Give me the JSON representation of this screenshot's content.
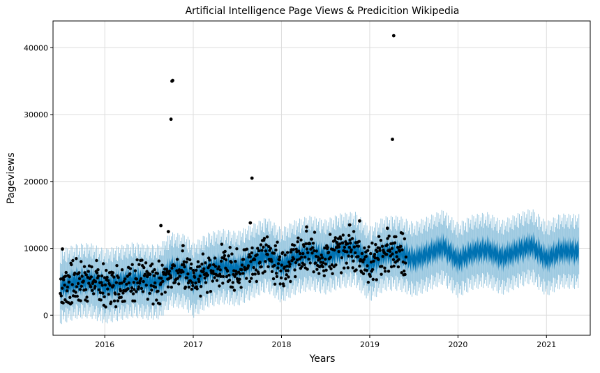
{
  "chart_data": {
    "type": "scatter",
    "title": "Artificial Intelligence Page Views & Predicition Wikipedia",
    "xlabel": "Years",
    "ylabel": "Pageviews",
    "xlim": [
      "2015-06-01",
      "2021-07-01"
    ],
    "ylim": [
      -3000,
      44000
    ],
    "x_ticks": [
      "2016",
      "2017",
      "2018",
      "2019",
      "2020",
      "2021"
    ],
    "y_ticks": [
      0,
      10000,
      20000,
      30000,
      40000
    ],
    "grid": true,
    "colors": {
      "actual": "#000000",
      "forecast": "#0072B2",
      "interval": "#9ecae1",
      "grid": "#dddddd"
    },
    "series": [
      {
        "kind": "forecast-mean",
        "points": [
          [
            "2015-07-01",
            4200
          ],
          [
            "2015-09-01",
            5000
          ],
          [
            "2015-11-01",
            5200
          ],
          [
            "2016-01-01",
            4300
          ],
          [
            "2016-03-01",
            4800
          ],
          [
            "2016-05-01",
            5300
          ],
          [
            "2016-07-01",
            4900
          ],
          [
            "2016-08-15",
            5000
          ],
          [
            "2016-10-01",
            6800
          ],
          [
            "2016-12-01",
            6500
          ],
          [
            "2017-01-01",
            5200
          ],
          [
            "2017-03-01",
            6700
          ],
          [
            "2017-05-01",
            7300
          ],
          [
            "2017-07-01",
            6900
          ],
          [
            "2017-09-01",
            8000
          ],
          [
            "2017-11-01",
            9100
          ],
          [
            "2018-01-01",
            7400
          ],
          [
            "2018-03-01",
            8700
          ],
          [
            "2018-05-01",
            9300
          ],
          [
            "2018-07-01",
            8700
          ],
          [
            "2018-09-01",
            9600
          ],
          [
            "2018-11-01",
            9900
          ],
          [
            "2019-01-01",
            7600
          ],
          [
            "2019-03-01",
            9200
          ],
          [
            "2019-05-01",
            9300
          ],
          [
            "2019-07-01",
            8300
          ],
          [
            "2019-09-01",
            9200
          ],
          [
            "2019-11-01",
            10200
          ],
          [
            "2020-01-01",
            8200
          ],
          [
            "2020-03-01",
            9400
          ],
          [
            "2020-05-01",
            9800
          ],
          [
            "2020-07-01",
            8600
          ],
          [
            "2020-09-01",
            9600
          ],
          [
            "2020-11-01",
            10400
          ],
          [
            "2021-01-01",
            8400
          ],
          [
            "2021-03-01",
            9600
          ],
          [
            "2021-05-15",
            9500
          ]
        ]
      },
      {
        "kind": "actual",
        "points": [
          [
            "2015-07-10",
            9900
          ],
          [
            "2016-10-05",
            35000
          ],
          [
            "2016-10-08",
            35100
          ],
          [
            "2016-10-01",
            29300
          ],
          [
            "2017-09-01",
            20500
          ],
          [
            "2019-04-10",
            41800
          ],
          [
            "2019-04-05",
            26300
          ],
          [
            "2016-08-20",
            13400
          ],
          [
            "2017-08-25",
            13800
          ],
          [
            "2018-11-20",
            14100
          ],
          [
            "2019-03-15",
            13000
          ],
          [
            "2018-10-10",
            13500
          ],
          [
            "2016-11-20",
            10400
          ],
          [
            "2016-09-20",
            12500
          ],
          [
            "2018-04-15",
            13200
          ]
        ]
      }
    ]
  }
}
